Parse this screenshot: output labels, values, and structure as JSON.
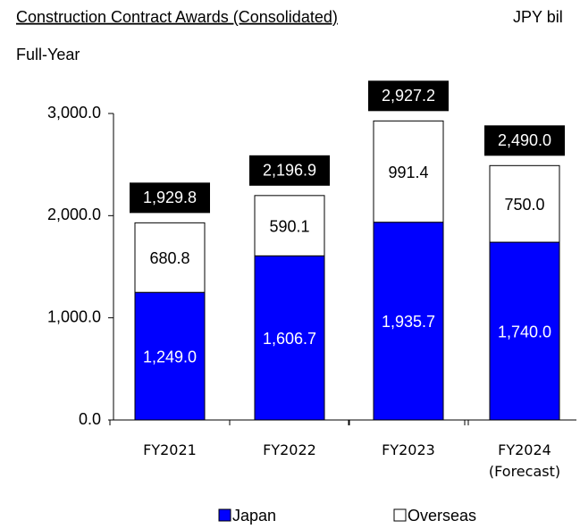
{
  "chart_data": {
    "type": "stacked_bar",
    "title": "Construction Contract Awards (Consolidated)",
    "unit": "JPY bil",
    "subtitle": "Full-Year",
    "categories": [
      "FY2021",
      "FY2022",
      "FY2023",
      "FY2024\n(Forecast)"
    ],
    "series": [
      {
        "name": "Japan",
        "color": "#0000ff",
        "values": [
          1249.0,
          1606.7,
          1935.7,
          1740.0
        ],
        "value_labels": [
          "1,249.0",
          "1,606.7",
          "1,935.7",
          "1,740.0"
        ]
      },
      {
        "name": "Overseas",
        "color": "#ffffff",
        "values": [
          680.8,
          590.1,
          991.4,
          750.0
        ],
        "value_labels": [
          "680.8",
          "590.1",
          "991.4",
          "750.0"
        ]
      }
    ],
    "totals": [
      1929.8,
      2196.9,
      2927.2,
      2490.0
    ],
    "total_labels": [
      "1,929.8",
      "2,196.9",
      "2,927.2",
      "2,490.0"
    ],
    "ylim": [
      0,
      3000
    ],
    "yticks": [
      {
        "value": 0,
        "label": "0.0"
      },
      {
        "value": 1000,
        "label": "1,000.0"
      },
      {
        "value": 2000,
        "label": "2,000.0"
      },
      {
        "value": 3000,
        "label": "3,000.0"
      }
    ]
  }
}
